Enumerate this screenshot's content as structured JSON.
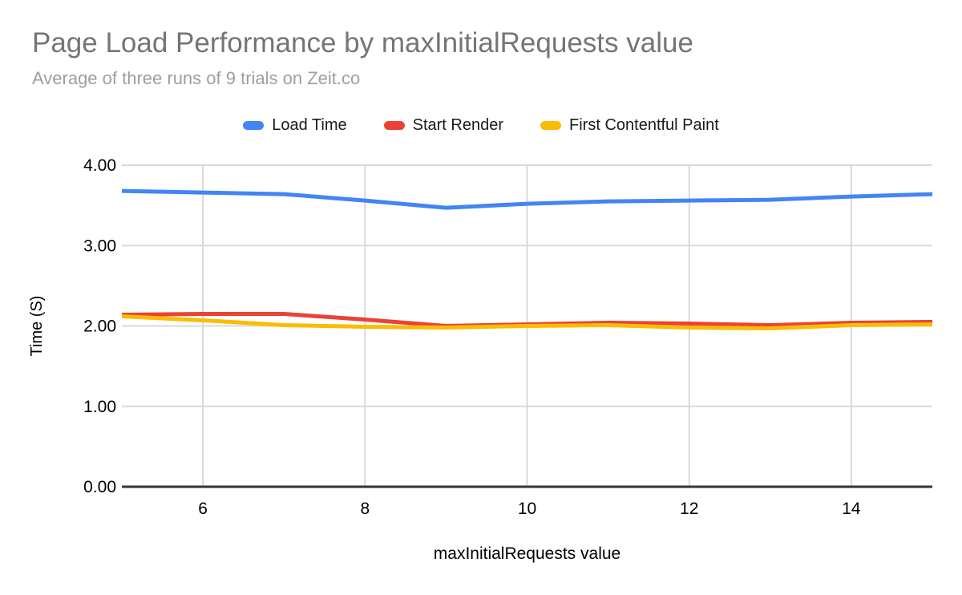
{
  "header": {
    "title": "Page Load Performance by maxInitialRequests value",
    "subtitle": "Average of three runs of 9 trials on Zeit.co"
  },
  "legend": [
    {
      "label": "Load Time",
      "color": "#4285f4"
    },
    {
      "label": "Start Render",
      "color": "#ea4335"
    },
    {
      "label": "First Contentful Paint",
      "color": "#fbbc04"
    }
  ],
  "chart_data": {
    "type": "line",
    "title": "Page Load Performance by maxInitialRequests value",
    "subtitle": "Average of three runs of 9 trials on Zeit.co",
    "xlabel": "maxInitialRequests value",
    "ylabel": "Time (S)",
    "x": [
      5,
      6,
      7,
      8,
      9,
      10,
      11,
      12,
      13,
      14,
      15
    ],
    "series": [
      {
        "name": "Load Time",
        "color": "#4285f4",
        "values": [
          3.68,
          3.66,
          3.64,
          3.56,
          3.47,
          3.52,
          3.55,
          3.56,
          3.57,
          3.61,
          3.64
        ]
      },
      {
        "name": "Start Render",
        "color": "#ea4335",
        "values": [
          2.14,
          2.15,
          2.15,
          2.08,
          2.0,
          2.02,
          2.04,
          2.03,
          2.01,
          2.04,
          2.05
        ]
      },
      {
        "name": "First Contentful Paint",
        "color": "#fbbc04",
        "values": [
          2.12,
          2.07,
          2.01,
          1.99,
          1.98,
          2.0,
          2.01,
          1.98,
          1.97,
          2.01,
          2.02
        ]
      }
    ],
    "xlim": [
      5,
      15
    ],
    "ylim": [
      0,
      4
    ],
    "xticks": [
      {
        "value": 6,
        "label": "6"
      },
      {
        "value": 8,
        "label": "8"
      },
      {
        "value": 10,
        "label": "10"
      },
      {
        "value": 12,
        "label": "12"
      },
      {
        "value": 14,
        "label": "14"
      }
    ],
    "yticks": [
      {
        "value": 0,
        "label": "0.00"
      },
      {
        "value": 1,
        "label": "1.00"
      },
      {
        "value": 2,
        "label": "2.00"
      },
      {
        "value": 3,
        "label": "3.00"
      },
      {
        "value": 4,
        "label": "4.00"
      }
    ],
    "grid": true,
    "legend_position": "top"
  },
  "colors": {
    "title": "#757575",
    "subtitle": "#9e9e9e",
    "gridline": "#d9d9d9",
    "axis_line": "#333333",
    "tick_text": "#000000",
    "background": "#ffffff"
  }
}
